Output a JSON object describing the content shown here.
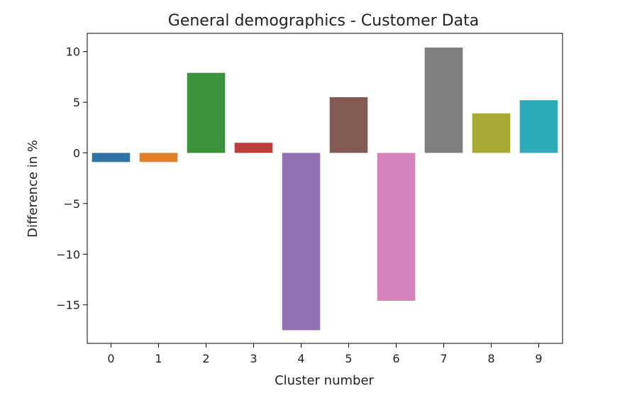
{
  "chart_data": {
    "type": "bar",
    "title": "General demographics - Customer Data",
    "xlabel": "Cluster number",
    "ylabel": "Difference in %",
    "categories": [
      "0",
      "1",
      "2",
      "3",
      "4",
      "5",
      "6",
      "7",
      "8",
      "9"
    ],
    "values": [
      -0.9,
      -0.9,
      7.9,
      1.0,
      -17.5,
      5.5,
      -14.6,
      10.4,
      3.9,
      5.2
    ],
    "colors": [
      "#3274a1",
      "#e1812c",
      "#3a923a",
      "#c03d3e",
      "#9372b2",
      "#845b53",
      "#d684bd",
      "#7f7f7f",
      "#a9aa35",
      "#2eabb8"
    ],
    "ylim": [
      -18.8,
      11.8
    ],
    "yticks": [
      10,
      5,
      0,
      -5,
      -10,
      -15
    ],
    "ytick_labels": [
      "10",
      "5",
      "0",
      "−5",
      "−10",
      "−15"
    ],
    "grid": false,
    "legend": false
  }
}
